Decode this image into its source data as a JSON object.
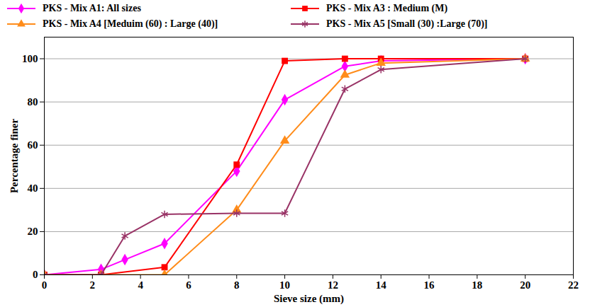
{
  "chart_data": {
    "type": "line",
    "x_label": "Sieve size (mm)",
    "y_label": "Percentage finer",
    "series": [
      {
        "name": "PKS - Mix A1: All sizes",
        "color": "#ff00ff",
        "marker": "diamond",
        "x": [
          0,
          2.36,
          3.35,
          5,
          8,
          10,
          12.5,
          14,
          20
        ],
        "values": [
          0,
          2.5,
          7,
          14.5,
          48,
          81,
          96.5,
          99,
          100
        ]
      },
      {
        "name": "PKS - Mix A3 : Medium (M)",
        "color": "#ff0000",
        "marker": "square",
        "x": [
          0,
          2.36,
          5,
          8,
          10,
          12.5,
          14,
          20
        ],
        "values": [
          0,
          0,
          3.5,
          51,
          99,
          100,
          100,
          100
        ]
      },
      {
        "name": "PKS - Mix A4 [Meduim (60) : Large (40)]",
        "color": "#ff8c1a",
        "marker": "triangle",
        "x": [
          0,
          2.36,
          5,
          8,
          10,
          12.5,
          14,
          20
        ],
        "values": [
          0,
          0,
          0,
          30,
          62,
          92.5,
          98,
          100
        ]
      },
      {
        "name": "PKS - Mix A5 [Small (30) :Large (70)]",
        "color": "#993366",
        "marker": "asterisk",
        "x": [
          0,
          2.36,
          3.35,
          5,
          8,
          10,
          12.5,
          14,
          20
        ],
        "values": [
          0,
          0,
          18,
          28,
          28.5,
          28.5,
          86,
          95,
          100
        ]
      }
    ],
    "xlim": [
      0,
      22
    ],
    "xticks": [
      0,
      2,
      4,
      6,
      8,
      10,
      12,
      14,
      16,
      18,
      20,
      22
    ],
    "ylim": [
      0,
      110
    ],
    "yticks": [
      0,
      20,
      40,
      60,
      80,
      100
    ],
    "grid": true,
    "legend": "top"
  }
}
